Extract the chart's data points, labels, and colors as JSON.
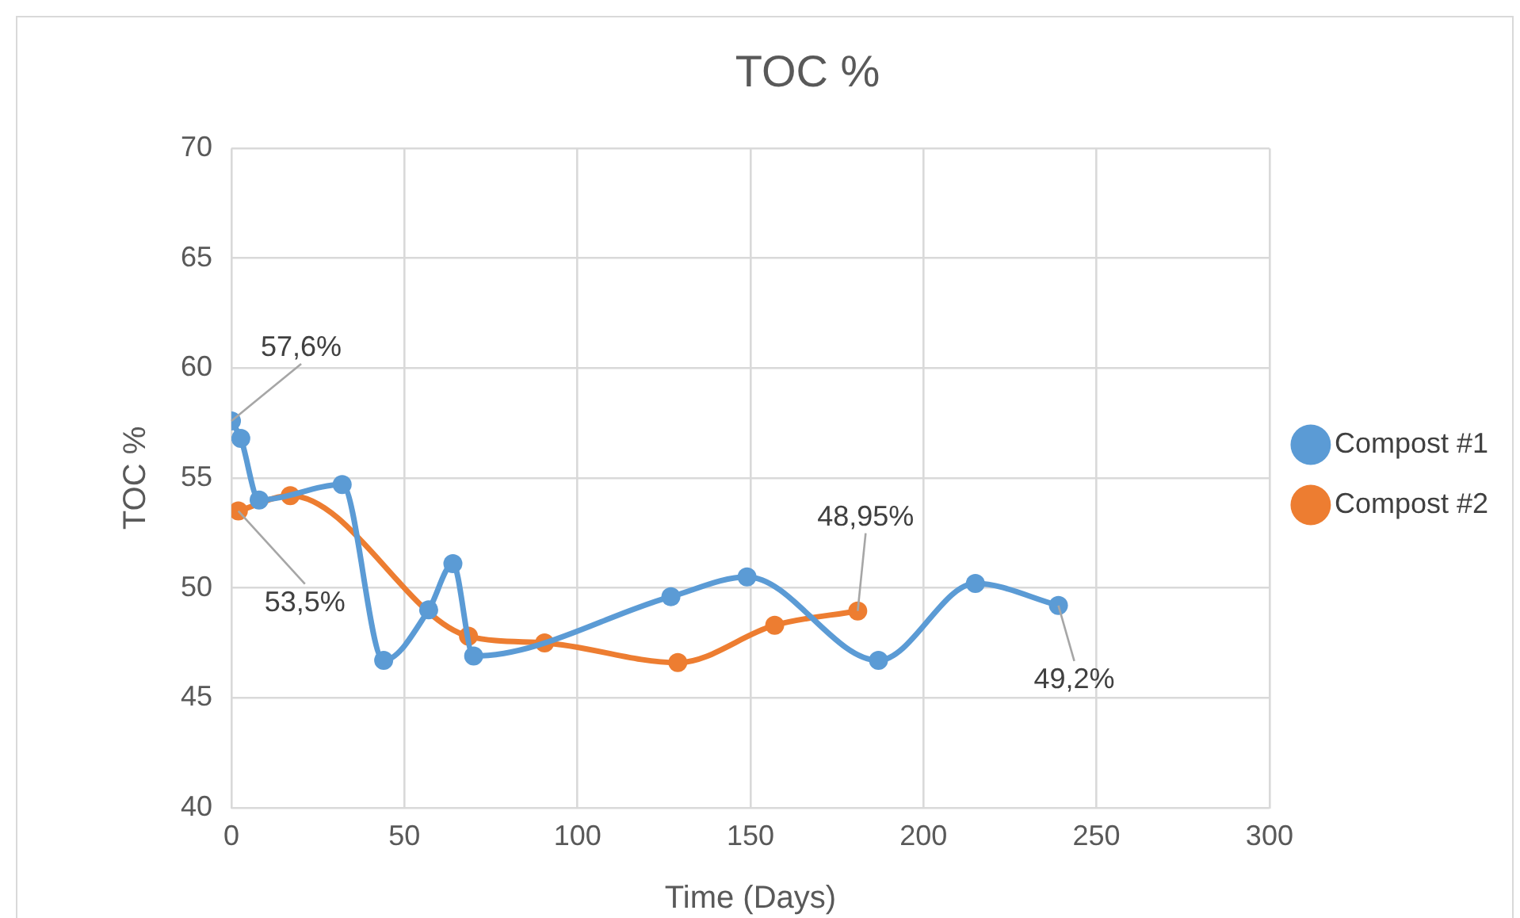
{
  "chart_data": {
    "type": "line",
    "title": "TOC %",
    "xlabel": "Time (Days)",
    "ylabel": "TOC %",
    "xlim": [
      0,
      300
    ],
    "xticks": [
      0,
      50,
      100,
      150,
      200,
      250,
      300
    ],
    "ylim": [
      40,
      70
    ],
    "yticks": [
      40,
      45,
      50,
      55,
      60,
      65,
      70
    ],
    "grid": true,
    "legend": "right",
    "marker": "circle",
    "series": [
      {
        "name": "Compost #1",
        "color": "#5b9bd5",
        "x": [
          0,
          2.7,
          8,
          32,
          44,
          57,
          64,
          70,
          127,
          149,
          187,
          215,
          239
        ],
        "values": [
          57.6,
          56.8,
          54,
          54.7,
          46.7,
          49,
          51.1,
          46.9,
          49.6,
          50.5,
          46.7,
          50.2,
          49.2
        ]
      },
      {
        "name": "Compost #2",
        "color": "#ed7d31",
        "x": [
          2,
          17,
          68.5,
          90.5,
          129,
          157,
          181
        ],
        "values": [
          53.5,
          54.2,
          47.8,
          47.5,
          46.6,
          48.3,
          48.95
        ]
      }
    ],
    "annotations": [
      {
        "text": "57,6%",
        "x": 0,
        "y": 57.6
      },
      {
        "text": "53,5%",
        "x": 2,
        "y": 53.5
      },
      {
        "text": "48,95%",
        "x": 181,
        "y": 48.95
      },
      {
        "text": "49,2%",
        "x": 239,
        "y": 49.2
      }
    ]
  }
}
